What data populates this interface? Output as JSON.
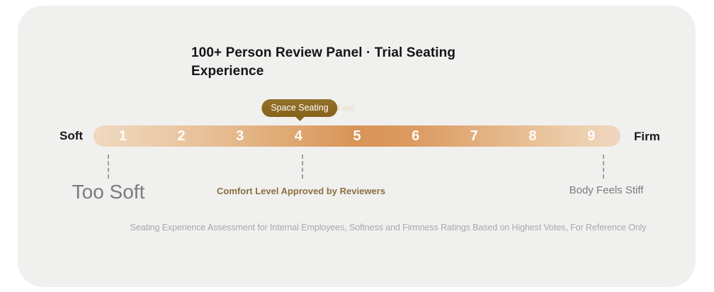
{
  "card": {
    "title": "100+ Person Review Panel · Trial Seating Experience",
    "tooltip": {
      "label": "Space Seating",
      "overflow_label": "Feel",
      "anchor_tick": "4",
      "background_color": "#8a671f",
      "text_color": "#ffffff"
    },
    "scale": {
      "left_label": "Soft",
      "right_label": "Firm",
      "min": 1,
      "max": 9,
      "ticks": [
        "1",
        "2",
        "3",
        "4",
        "5",
        "6",
        "7",
        "8",
        "9"
      ],
      "gradient": {
        "start_color": "#f0d8c0",
        "mid_color": "#d99457",
        "end_color": "#efd6bf"
      }
    },
    "annotations": [
      {
        "label": "Too Soft",
        "tick": "1"
      },
      {
        "label": "Comfort Level Approved by Reviewers",
        "tick": "4",
        "color": "#8b7040"
      },
      {
        "label": "Body Feels Stiff",
        "tick": "9"
      }
    ],
    "footnote": "Seating Experience Assessment for Internal Employees, Softness and Firmness Ratings Based on Highest Votes, For Reference Only"
  }
}
